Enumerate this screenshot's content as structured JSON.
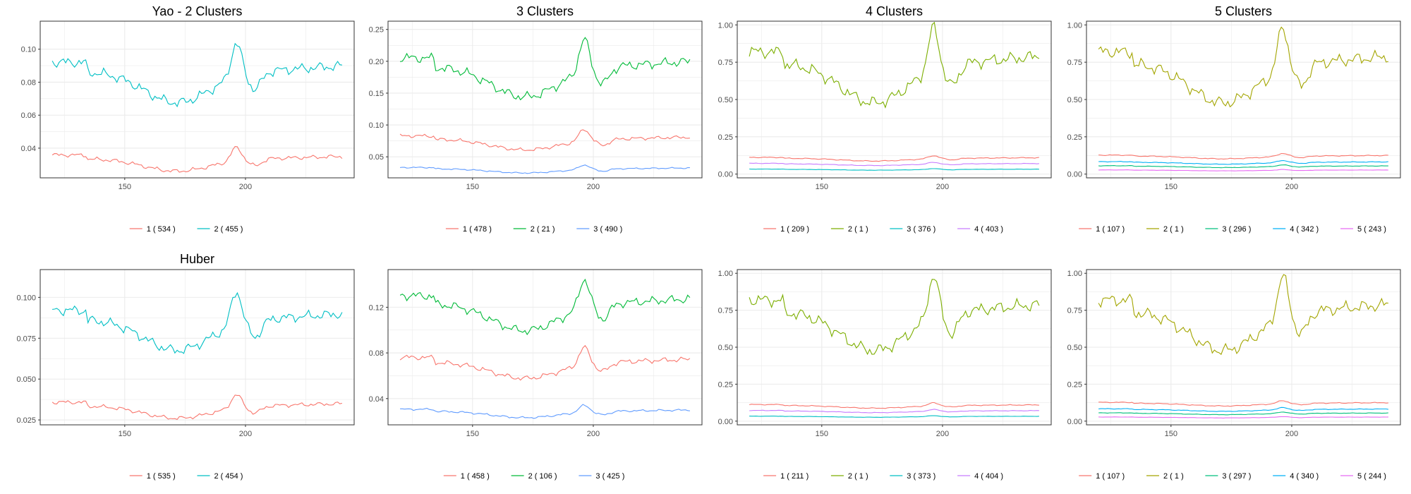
{
  "figure": {
    "colors": {
      "gridline": "#ebebeb",
      "frame": "#333333",
      "ticktext": "#4d4d4d"
    }
  },
  "chart_data": [
    {
      "type": "line",
      "title": "Yao - 2 Clusters",
      "ylim": [
        0.022,
        0.117
      ],
      "yticks": [
        0.04,
        0.06,
        0.08,
        0.1
      ],
      "yticklabels": [
        "0.04",
        "0.06",
        "0.08",
        "0.10"
      ],
      "xlim": [
        115,
        245
      ],
      "xticks": [
        150,
        200
      ],
      "xticklabels": [
        "150",
        "200"
      ],
      "grid": true,
      "legend_position": "bottom",
      "series": [
        {
          "name": "1 ( 534 )",
          "color": "#F8766D",
          "level": 0.031,
          "amp": 0.008
        },
        {
          "name": "2 ( 455 )",
          "color": "#00BFC4",
          "level": 0.08,
          "amp": 0.02
        }
      ]
    },
    {
      "type": "line",
      "title": "3 Clusters",
      "ylim": [
        0.017,
        0.263
      ],
      "yticks": [
        0.05,
        0.1,
        0.15,
        0.2,
        0.25
      ],
      "yticklabels": [
        "0.05",
        "0.10",
        "0.15",
        "0.20",
        "0.25"
      ],
      "xlim": [
        115,
        245
      ],
      "xticks": [
        150,
        200
      ],
      "xticklabels": [
        "150",
        "200"
      ],
      "grid": true,
      "legend_position": "bottom",
      "series": [
        {
          "name": "1 ( 478 )",
          "color": "#F8766D",
          "level": 0.072,
          "amp": 0.018
        },
        {
          "name": "2 ( 21 )",
          "color": "#00BA38",
          "level": 0.175,
          "amp": 0.05
        },
        {
          "name": "3 ( 490 )",
          "color": "#619CFF",
          "level": 0.029,
          "amp": 0.007
        }
      ]
    },
    {
      "type": "line",
      "title": "4 Clusters",
      "ylim": [
        -0.025,
        1.025
      ],
      "yticks": [
        0.0,
        0.25,
        0.5,
        0.75,
        1.0
      ],
      "yticklabels": [
        "0.00",
        "0.25",
        "0.50",
        "0.75",
        "1.00"
      ],
      "xlim": [
        115,
        245
      ],
      "xticks": [
        150,
        200
      ],
      "xticklabels": [
        "150",
        "200"
      ],
      "grid": true,
      "legend_position": "bottom",
      "series": [
        {
          "name": "1 ( 209 )",
          "color": "#F8766D",
          "level": 0.1,
          "amp": 0.02
        },
        {
          "name": "2 ( 1 )",
          "color": "#7CAE00",
          "level": 0.65,
          "amp": 0.28
        },
        {
          "name": "3 ( 376 )",
          "color": "#00BFC4",
          "level": 0.03,
          "amp": 0.006
        },
        {
          "name": "4 ( 403 )",
          "color": "#C77CFF",
          "level": 0.065,
          "amp": 0.012
        }
      ]
    },
    {
      "type": "line",
      "title": "5 Clusters",
      "ylim": [
        -0.025,
        1.025
      ],
      "yticks": [
        0.0,
        0.25,
        0.5,
        0.75,
        1.0
      ],
      "yticklabels": [
        "0.00",
        "0.25",
        "0.50",
        "0.75",
        "1.00"
      ],
      "xlim": [
        115,
        245
      ],
      "xticks": [
        150,
        200
      ],
      "xticklabels": [
        "150",
        "200"
      ],
      "grid": true,
      "legend_position": "bottom",
      "series": [
        {
          "name": "1 ( 107 )",
          "color": "#F8766D",
          "level": 0.115,
          "amp": 0.02
        },
        {
          "name": "2 ( 1 )",
          "color": "#A3A500",
          "level": 0.65,
          "amp": 0.28
        },
        {
          "name": "3 ( 296 )",
          "color": "#00BF7D",
          "level": 0.05,
          "amp": 0.01
        },
        {
          "name": "4 ( 342 )",
          "color": "#00B0F6",
          "level": 0.075,
          "amp": 0.014
        },
        {
          "name": "5 ( 243 )",
          "color": "#E76BF3",
          "level": 0.025,
          "amp": 0.005
        }
      ]
    },
    {
      "type": "line",
      "title": "Huber",
      "ylim": [
        0.022,
        0.117
      ],
      "yticks": [
        0.025,
        0.05,
        0.075,
        0.1
      ],
      "yticklabels": [
        "0.025",
        "0.050",
        "0.075",
        "0.100"
      ],
      "xlim": [
        115,
        245
      ],
      "xticks": [
        150,
        200
      ],
      "xticklabels": [
        "150",
        "200"
      ],
      "grid": true,
      "legend_position": "bottom",
      "series": [
        {
          "name": "1 ( 535 )",
          "color": "#F8766D",
          "level": 0.031,
          "amp": 0.008
        },
        {
          "name": "2 ( 454 )",
          "color": "#00BFC4",
          "level": 0.08,
          "amp": 0.02
        }
      ]
    },
    {
      "type": "line",
      "title": "",
      "ylim": [
        0.017,
        0.153
      ],
      "yticks": [
        0.04,
        0.08,
        0.12
      ],
      "yticklabels": [
        "0.04",
        "0.08",
        "0.12"
      ],
      "xlim": [
        115,
        245
      ],
      "xticks": [
        150,
        200
      ],
      "xticklabels": [
        "150",
        "200"
      ],
      "grid": true,
      "legend_position": "bottom",
      "series": [
        {
          "name": "1 ( 458 )",
          "color": "#F8766D",
          "level": 0.067,
          "amp": 0.015
        },
        {
          "name": "2 ( 106 )",
          "color": "#00BA38",
          "level": 0.115,
          "amp": 0.025
        },
        {
          "name": "3 ( 425 )",
          "color": "#619CFF",
          "level": 0.027,
          "amp": 0.006
        }
      ]
    },
    {
      "type": "line",
      "title": "",
      "ylim": [
        -0.025,
        1.025
      ],
      "yticks": [
        0.0,
        0.25,
        0.5,
        0.75,
        1.0
      ],
      "yticklabels": [
        "0.00",
        "0.25",
        "0.50",
        "0.75",
        "1.00"
      ],
      "xlim": [
        115,
        245
      ],
      "xticks": [
        150,
        200
      ],
      "xticklabels": [
        "150",
        "200"
      ],
      "grid": true,
      "legend_position": "bottom",
      "series": [
        {
          "name": "1 ( 211 )",
          "color": "#F8766D",
          "level": 0.1,
          "amp": 0.02
        },
        {
          "name": "2 ( 1 )",
          "color": "#7CAE00",
          "level": 0.65,
          "amp": 0.28
        },
        {
          "name": "3 ( 373 )",
          "color": "#00BFC4",
          "level": 0.03,
          "amp": 0.006
        },
        {
          "name": "4 ( 404 )",
          "color": "#C77CFF",
          "level": 0.065,
          "amp": 0.012
        }
      ]
    },
    {
      "type": "line",
      "title": "",
      "ylim": [
        -0.025,
        1.025
      ],
      "yticks": [
        0.0,
        0.25,
        0.5,
        0.75,
        1.0
      ],
      "yticklabels": [
        "0.00",
        "0.25",
        "0.50",
        "0.75",
        "1.00"
      ],
      "xlim": [
        115,
        245
      ],
      "xticks": [
        150,
        200
      ],
      "xticklabels": [
        "150",
        "200"
      ],
      "grid": true,
      "legend_position": "bottom",
      "series": [
        {
          "name": "1 ( 107 )",
          "color": "#F8766D",
          "level": 0.115,
          "amp": 0.02
        },
        {
          "name": "2 ( 1 )",
          "color": "#A3A500",
          "level": 0.65,
          "amp": 0.28
        },
        {
          "name": "3 ( 297 )",
          "color": "#00BF7D",
          "level": 0.05,
          "amp": 0.01
        },
        {
          "name": "4 ( 340 )",
          "color": "#00B0F6",
          "level": 0.075,
          "amp": 0.014
        },
        {
          "name": "5 ( 244 )",
          "color": "#E76BF3",
          "level": 0.025,
          "amp": 0.005
        }
      ]
    }
  ]
}
